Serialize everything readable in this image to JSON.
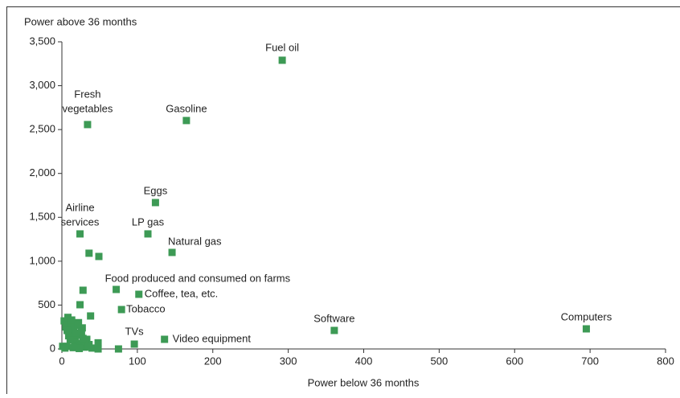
{
  "chart_data": {
    "type": "scatter",
    "x_label": "Power below 36 months",
    "y_label": "Power above 36 months",
    "xlim": [
      0,
      800
    ],
    "xticks": [
      0,
      100,
      200,
      300,
      400,
      500,
      600,
      700,
      800
    ],
    "ylim": [
      0,
      3500
    ],
    "yticks": [
      0,
      500,
      {
        "value": 1000,
        "label": "1,000"
      },
      {
        "value": 1500,
        "label": "1,500"
      },
      {
        "value": 2000,
        "label": "2,000"
      },
      {
        "value": 2500,
        "label": "2,500"
      },
      {
        "value": 3000,
        "label": "3,000"
      },
      {
        "value": 3500,
        "label": "3,500"
      }
    ],
    "series": [
      {
        "color": "#3d9a55",
        "x": [
          292,
          165,
          34,
          124,
          114,
          24,
          146,
          72,
          102,
          79,
          361,
          695,
          96,
          136,
          36,
          49,
          28,
          24,
          38,
          75,
          3,
          5,
          8,
          10,
          12,
          14,
          16,
          18,
          20,
          22,
          25,
          27,
          30,
          33,
          36,
          40,
          48,
          6,
          9,
          13,
          17,
          21,
          26,
          31,
          1,
          4,
          11,
          15,
          19,
          23,
          28,
          35,
          48,
          7
        ],
        "y": [
          3290,
          2603,
          2557,
          1668,
          1311,
          1311,
          1100,
          678,
          623,
          449,
          211,
          229,
          55,
          110,
          1091,
          1054,
          669,
          504,
          376,
          0,
          320,
          250,
          360,
          190,
          280,
          130,
          220,
          90,
          160,
          300,
          60,
          240,
          20,
          110,
          50,
          10,
          70,
          30,
          150,
          330,
          40,
          270,
          200,
          80,
          30,
          10,
          100,
          15,
          180,
          5,
          120,
          25,
          0,
          210
        ],
        "point_labels": [
          "Fuel oil",
          "Gasoline",
          [
            "Fresh",
            "vegetables"
          ],
          "Eggs",
          "LP gas",
          [
            "Airline",
            "services"
          ],
          "Natural gas",
          "Food produced and consumed on farms",
          "Coffee, tea, etc.",
          "Tobacco",
          "Software",
          "Computers",
          "TVs",
          "Video equipment"
        ]
      }
    ]
  }
}
